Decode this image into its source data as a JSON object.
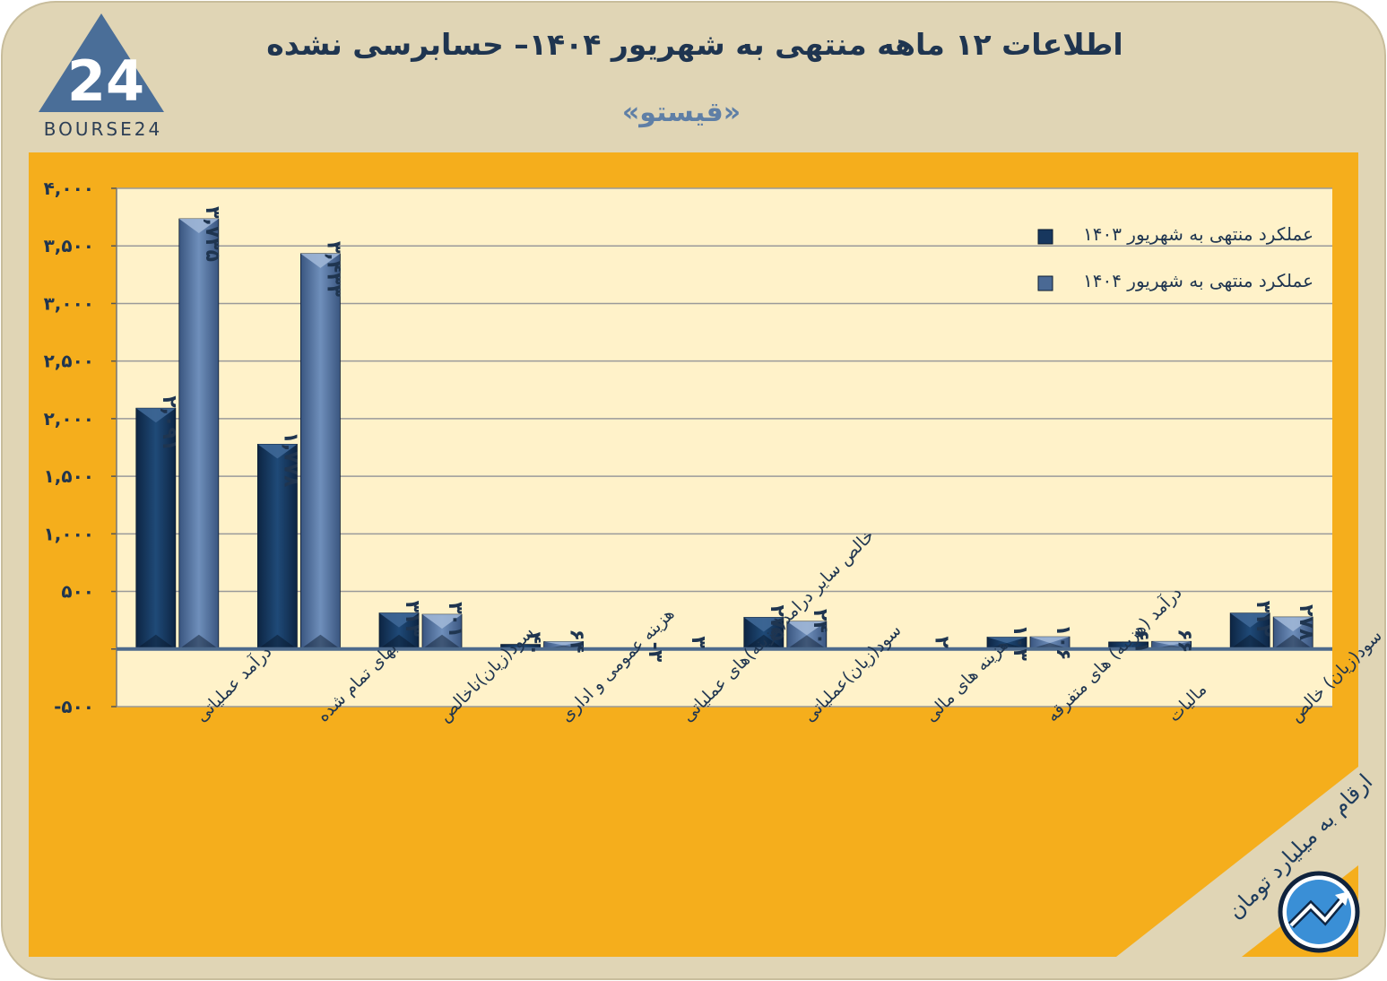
{
  "header": {
    "title": "اطلاعات ۱۲ ماهه منتهی به شهریور ۱۴۰۴– حسابرسی نشده",
    "subtitle": "«قیستو»",
    "logo_text": "BOURSE24",
    "logo_numeral": "24",
    "unit_note": "ارقام به میلیارد تومان"
  },
  "colors": {
    "background": "#e0d5b5",
    "plot_area": "#f5ae1c",
    "series_1403": "#17375e",
    "series_1404": "#4a6994",
    "axis": "#4d6a8c",
    "text_dark": "#1f3550"
  },
  "chart_data": {
    "type": "bar",
    "title": "اطلاعات ۱۲ ماهه منتهی به شهریور ۱۴۰۴– حسابرسی نشده",
    "ylim": [
      -500,
      4000
    ],
    "yticks": [
      -500,
      0,
      500,
      1000,
      1500,
      2000,
      2500,
      3000,
      3500,
      4000
    ],
    "ytick_labels": [
      "-۵۰۰",
      "",
      "۵۰۰",
      "۱,۰۰۰",
      "۱,۵۰۰",
      "۲,۰۰۰",
      "۲,۵۰۰",
      "۳,۰۰۰",
      "۳,۵۰۰",
      "۴,۰۰۰"
    ],
    "grid": true,
    "legend_position": "top-right",
    "categories": [
      "درآمد عملیاتی",
      "بهای تمام شده",
      "سود(زیان)ناخالص",
      "هزینه عمومی و اداری",
      "خالص سایر درامد(هزینه)های عملیاتی",
      "سود(زیان)عملیاتی",
      "هزینه های مالی",
      "درآمد (هزینه) های متفرقه",
      "مالیات",
      "سود(زیان) خالص"
    ],
    "series": [
      {
        "name": "عملکرد منتهی به شهریور ۱۴۰۳",
        "values": [
          2091,
          1778,
          313,
          40,
          -3,
          275,
          0,
          103,
          61,
          312
        ],
        "labels": [
          "۲,۰۹۱",
          "۱,۷۷۸",
          "۳۱۳",
          "۴۰",
          "-۳",
          "۲۷۵",
          "",
          "۱۰۳",
          "۶۱",
          "۳۱۲"
        ]
      },
      {
        "name": "عملکرد منتهی به شهریور ۱۴۰۴",
        "values": [
          3735,
          3433,
          301,
          64,
          3,
          240,
          2,
          106,
          66,
          278
        ],
        "labels": [
          "۳,۷۳۵",
          "۳,۴۳۳",
          "۳۰۱",
          "۶۴",
          "۳",
          "۲۴۰",
          "۲",
          "۱۰۶",
          "۶۶",
          "۲۷۸"
        ]
      }
    ]
  }
}
